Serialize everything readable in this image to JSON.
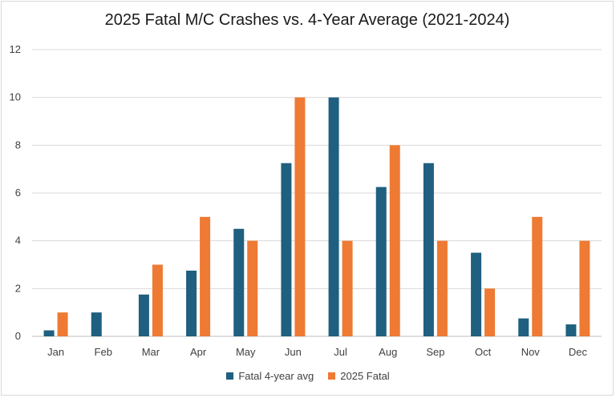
{
  "chart_data": {
    "type": "bar",
    "title": "2025 Fatal M/C Crashes vs. 4-Year Average (2021-2024)",
    "xlabel": "",
    "ylabel": "",
    "ylim": [
      0,
      12
    ],
    "yticks": [
      0,
      2,
      4,
      6,
      8,
      10,
      12
    ],
    "grid": true,
    "legend_position": "bottom",
    "categories": [
      "Jan",
      "Feb",
      "Mar",
      "Apr",
      "May",
      "Jun",
      "Jul",
      "Aug",
      "Sep",
      "Oct",
      "Nov",
      "Dec"
    ],
    "series": [
      {
        "name": "Fatal 4-year avg",
        "color": "#1f5f7f",
        "values": [
          0.25,
          1,
          1.75,
          2.75,
          4.5,
          7.25,
          10,
          6.25,
          7.25,
          3.5,
          0.75,
          0.5
        ]
      },
      {
        "name": "2025 Fatal",
        "color": "#ee7a33",
        "values": [
          1,
          0,
          3,
          5,
          4,
          10,
          4,
          8,
          4,
          2,
          5,
          4
        ]
      }
    ]
  }
}
